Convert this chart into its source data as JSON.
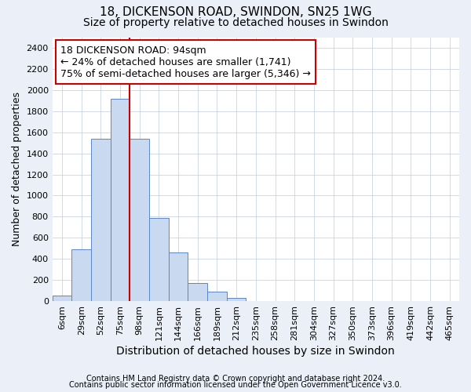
{
  "title": "18, DICKENSON ROAD, SWINDON, SN25 1WG",
  "subtitle": "Size of property relative to detached houses in Swindon",
  "xlabel": "Distribution of detached houses by size in Swindon",
  "ylabel": "Number of detached properties",
  "footnote1": "Contains HM Land Registry data © Crown copyright and database right 2024.",
  "footnote2": "Contains public sector information licensed under the Open Government Licence v3.0.",
  "categories": [
    "6sqm",
    "29sqm",
    "52sqm",
    "75sqm",
    "98sqm",
    "121sqm",
    "144sqm",
    "166sqm",
    "189sqm",
    "212sqm",
    "235sqm",
    "258sqm",
    "281sqm",
    "304sqm",
    "327sqm",
    "350sqm",
    "373sqm",
    "396sqm",
    "419sqm",
    "442sqm",
    "465sqm"
  ],
  "values": [
    55,
    490,
    1540,
    1920,
    1540,
    790,
    460,
    175,
    90,
    30,
    0,
    0,
    0,
    0,
    0,
    0,
    0,
    0,
    0,
    0,
    0
  ],
  "bar_color": "#c9d9ef",
  "bar_edge_color": "#5b87c6",
  "highlight_line_color": "#cc0000",
  "annotation_text_line1": "18 DICKENSON ROAD: 94sqm",
  "annotation_text_line2": "← 24% of detached houses are smaller (1,741)",
  "annotation_text_line3": "75% of semi-detached houses are larger (5,346) →",
  "annotation_box_color": "white",
  "annotation_box_edge_color": "#cc0000",
  "ylim": [
    0,
    2500
  ],
  "yticks": [
    0,
    200,
    400,
    600,
    800,
    1000,
    1200,
    1400,
    1600,
    1800,
    2000,
    2200,
    2400
  ],
  "bg_color": "#eaeff8",
  "plot_bg_color": "white",
  "title_fontsize": 11,
  "subtitle_fontsize": 10,
  "ylabel_fontsize": 9,
  "xlabel_fontsize": 10,
  "tick_fontsize": 8,
  "annotation_fontsize": 9,
  "footnote_fontsize": 7,
  "highlight_bar_index": 4
}
